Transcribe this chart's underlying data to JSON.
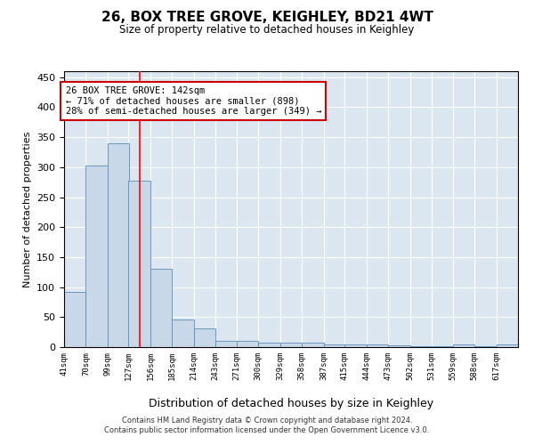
{
  "title": "26, BOX TREE GROVE, KEIGHLEY, BD21 4WT",
  "subtitle": "Size of property relative to detached houses in Keighley",
  "xlabel": "Distribution of detached houses by size in Keighley",
  "ylabel": "Number of detached properties",
  "bar_color": "#c8d8e8",
  "bar_edge_color": "#5b8db8",
  "bg_color": "#dce6f0",
  "grid_color": "#ffffff",
  "red_line_x": 142,
  "annotation_line1": "26 BOX TREE GROVE: 142sqm",
  "annotation_line2": "← 71% of detached houses are smaller (898)",
  "annotation_line3": "28% of semi-detached houses are larger (349) →",
  "footer": "Contains HM Land Registry data © Crown copyright and database right 2024.\nContains public sector information licensed under the Open Government Licence v3.0.",
  "bins": [
    41,
    70,
    99,
    127,
    156,
    185,
    214,
    243,
    271,
    300,
    329,
    358,
    387,
    415,
    444,
    473,
    502,
    531,
    559,
    588,
    617
  ],
  "values": [
    92,
    302,
    340,
    278,
    130,
    46,
    31,
    11,
    10,
    8,
    8,
    8,
    4,
    4,
    4,
    3,
    1,
    1,
    5,
    1,
    4
  ],
  "bin_width": 29,
  "ylim": [
    0,
    460
  ],
  "yticks": [
    0,
    50,
    100,
    150,
    200,
    250,
    300,
    350,
    400,
    450
  ]
}
